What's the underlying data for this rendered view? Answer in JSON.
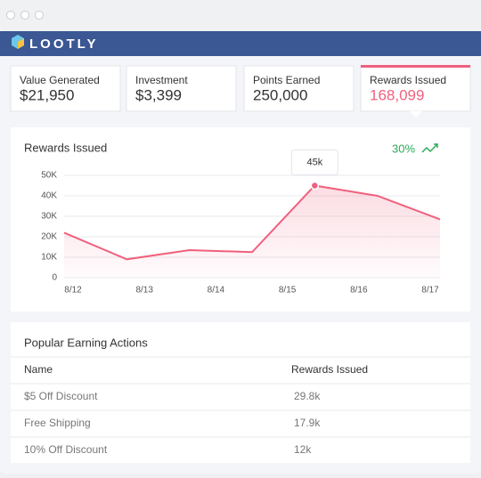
{
  "brand": "LOOTLY",
  "stats": [
    {
      "label": "Value Generated",
      "value": "$21,950"
    },
    {
      "label": "Investment",
      "value": "$3,399"
    },
    {
      "label": "Points Earned",
      "value": "250,000"
    },
    {
      "label": "Rewards Issued",
      "value": "168,099"
    }
  ],
  "chart_data": {
    "type": "line",
    "title": "Rewards Issued",
    "trend": "30%",
    "xticks": [
      "8/12",
      "8/13",
      "8/14",
      "8/15",
      "8/16",
      "8/17"
    ],
    "series": [
      {
        "name": "Rewards Issued",
        "color": "#f0607e",
        "values": [
          22000,
          9000,
          13500,
          12500,
          45000,
          40000,
          28500
        ],
        "value_labels": [
          null,
          null,
          null,
          null,
          "45k",
          null,
          null
        ]
      }
    ],
    "ylim": [
      0,
      50000
    ],
    "yticks": [
      0,
      {
        "value": 10000,
        "label": "10K"
      },
      {
        "value": 20000,
        "label": "20K"
      },
      {
        "value": 30000,
        "label": "30K"
      },
      {
        "value": 40000,
        "label": "40K"
      },
      {
        "value": 50000,
        "label": "50K"
      }
    ],
    "grid": true
  },
  "table": {
    "title": "Popular Earning Actions",
    "columns": [
      "Name",
      "Rewards Issued"
    ],
    "rows": [
      [
        "$5 Off Discount",
        "29.8k"
      ],
      [
        "Free Shipping",
        "17.9k"
      ],
      [
        "10% Off Discount",
        "12k"
      ]
    ]
  }
}
